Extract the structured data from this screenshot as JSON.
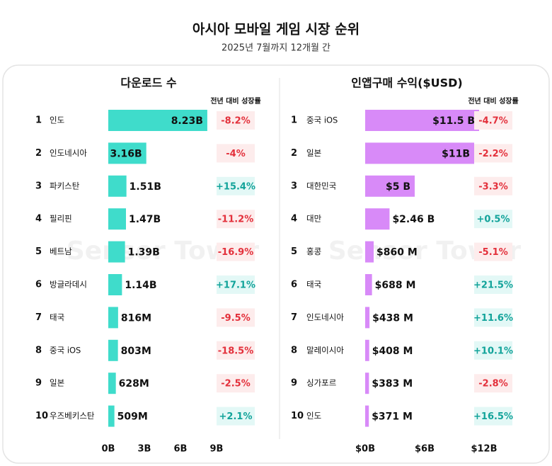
{
  "title": "아시아 모바일 게임 시장 순위",
  "subtitle": "2025년 7월까지 12개월 간",
  "watermark": "Sensor Tower",
  "chart_data": [
    {
      "type": "bar",
      "orientation": "horizontal",
      "title": "다운로드 수",
      "color": "#3fdccb",
      "ranks": [
        1,
        2,
        3,
        4,
        5,
        6,
        7,
        8,
        9,
        10
      ],
      "categories": [
        "인도",
        "인도네시아",
        "파키스탄",
        "필리핀",
        "베트남",
        "방글라데시",
        "태국",
        "중국 iOS",
        "일본",
        "우즈베키스탄"
      ],
      "values": [
        8.23,
        3.16,
        1.51,
        1.47,
        1.39,
        1.14,
        0.816,
        0.803,
        0.628,
        0.509
      ],
      "value_labels": [
        "8.23B",
        "3.16B",
        "1.51B",
        "1.47B",
        "1.39B",
        "1.14B",
        "816M",
        "803M",
        "628M",
        "509M"
      ],
      "xlim": [
        0,
        9
      ],
      "xticks": [
        {
          "value": 0,
          "label": "0B"
        },
        {
          "value": 3,
          "label": "3B"
        },
        {
          "value": 6,
          "label": "6B"
        },
        {
          "value": 9,
          "label": "9B"
        }
      ],
      "growth": {
        "name": "전년 대비 성장률",
        "values": [
          -8.2,
          -4,
          15.4,
          -11.2,
          -16.9,
          17.1,
          -9.5,
          -18.5,
          -2.5,
          2.1
        ],
        "value_labels": [
          "-8.2%",
          "-4%",
          "+15.4%",
          "-11.2%",
          "-16.9%",
          "+17.1%",
          "-9.5%",
          "-18.5%",
          "-2.5%",
          "+2.1%"
        ]
      }
    },
    {
      "type": "bar",
      "orientation": "horizontal",
      "title": "인앱구매 수익($USD)",
      "color": "#d88af8",
      "ranks": [
        1,
        2,
        3,
        4,
        5,
        6,
        7,
        8,
        9,
        10
      ],
      "categories": [
        "중국 iOS",
        "일본",
        "대한민국",
        "대만",
        "홍콩",
        "태국",
        "인도네시아",
        "말레이시아",
        "싱가포르",
        "인도"
      ],
      "values": [
        11.5,
        11,
        5,
        2.46,
        0.86,
        0.688,
        0.438,
        0.408,
        0.383,
        0.371
      ],
      "value_labels": [
        "$11.5 B",
        "$11B",
        "$5 B",
        "$2.46 B",
        "$860 M",
        "$688 M",
        "$438 M",
        "$408 M",
        "$383 M",
        "$371 M"
      ],
      "xlim": [
        0,
        12
      ],
      "xticks": [
        {
          "value": 0,
          "label": "$0B"
        },
        {
          "value": 6,
          "label": "$6B"
        },
        {
          "value": 12,
          "label": "$12B"
        }
      ],
      "growth": {
        "name": "전년 대비 성장률",
        "values": [
          -4.7,
          -2.2,
          -3.3,
          0.5,
          -5.1,
          21.5,
          11.6,
          10.1,
          -2.8,
          16.5
        ],
        "value_labels": [
          "-4.7%",
          "-2.2%",
          "-3.3%",
          "+0.5%",
          "-5.1%",
          "+21.5%",
          "+11.6%",
          "+10.1%",
          "-2.8%",
          "+16.5%"
        ]
      }
    }
  ]
}
